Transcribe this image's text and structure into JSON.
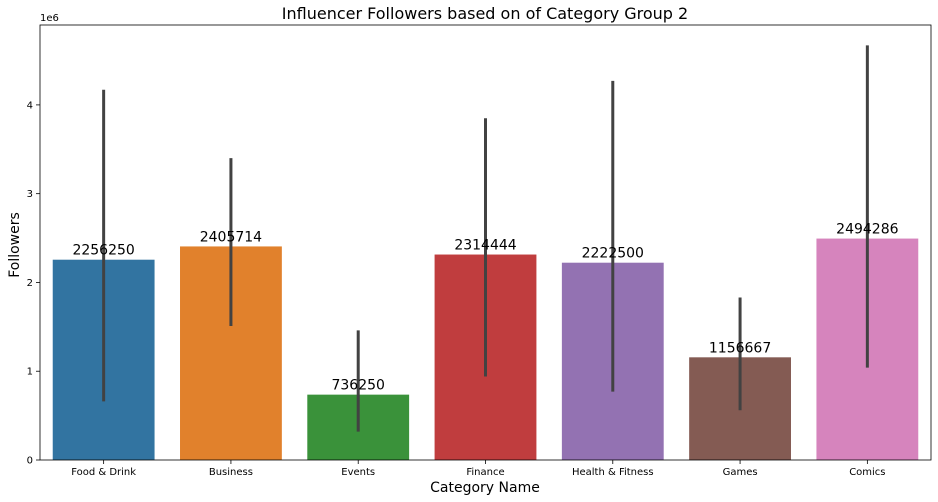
{
  "chart_data": {
    "type": "bar",
    "title": "Influencer Followers based on of Category Group 2",
    "xlabel": "Category Name",
    "ylabel": "Followers",
    "y_multiplier_label": "1e6",
    "y_multiplier": 1000000,
    "ylim": [
      0,
      4900000
    ],
    "yticks": [
      0,
      1000000,
      2000000,
      3000000,
      4000000
    ],
    "ytick_labels": [
      "0",
      "1",
      "2",
      "3",
      "4"
    ],
    "grid": false,
    "legend": "none",
    "categories": [
      "Food & Drink",
      "Business",
      "Events",
      "Finance",
      "Health & Fitness",
      "Games",
      "Comics"
    ],
    "values": [
      2256250,
      2405714,
      736250,
      2314444,
      2222500,
      1156667,
      2494286
    ],
    "value_labels": [
      "2256250",
      "2405714",
      "736250",
      "2314444",
      "2222500",
      "1156667",
      "2494286"
    ],
    "error_low": [
      660000,
      1510000,
      320000,
      940000,
      770000,
      560000,
      1040000
    ],
    "error_high": [
      4170000,
      3400000,
      1460000,
      3850000,
      4270000,
      1830000,
      4670000
    ],
    "colors": [
      "#3274a1",
      "#e1812c",
      "#3a923a",
      "#c03d3e",
      "#9372b2",
      "#845b53",
      "#d684bd"
    ],
    "error_bar_color": "#424242"
  }
}
